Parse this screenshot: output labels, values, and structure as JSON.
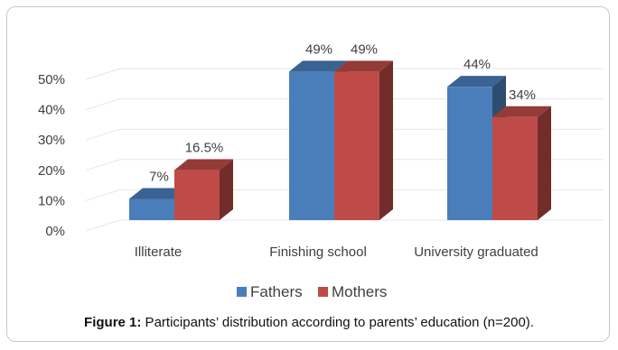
{
  "chart_data": {
    "type": "bar",
    "categories": [
      "Illiterate",
      "Finishing school",
      "University graduated"
    ],
    "series": [
      {
        "name": "Fathers",
        "values": [
          7,
          49,
          44
        ],
        "labels": [
          "7%",
          "49%",
          "44%"
        ]
      },
      {
        "name": "Mothers",
        "values": [
          16.5,
          49,
          34
        ],
        "labels": [
          "16.5%",
          "49%",
          "34%"
        ]
      }
    ],
    "ylim": [
      0,
      50
    ],
    "yticks": [
      0,
      10,
      20,
      30,
      40,
      50
    ],
    "ytick_labels": [
      "0%",
      "10%",
      "20%",
      "30%",
      "40%",
      "50%"
    ],
    "grid": true,
    "legend": "bottom",
    "colors": {
      "Fathers": "#4a7ebb",
      "Mothers": "#be4b48"
    }
  },
  "caption": {
    "label": "Figure 1:",
    "text": " Participants’ distribution according to parents’ education (n=200)."
  }
}
